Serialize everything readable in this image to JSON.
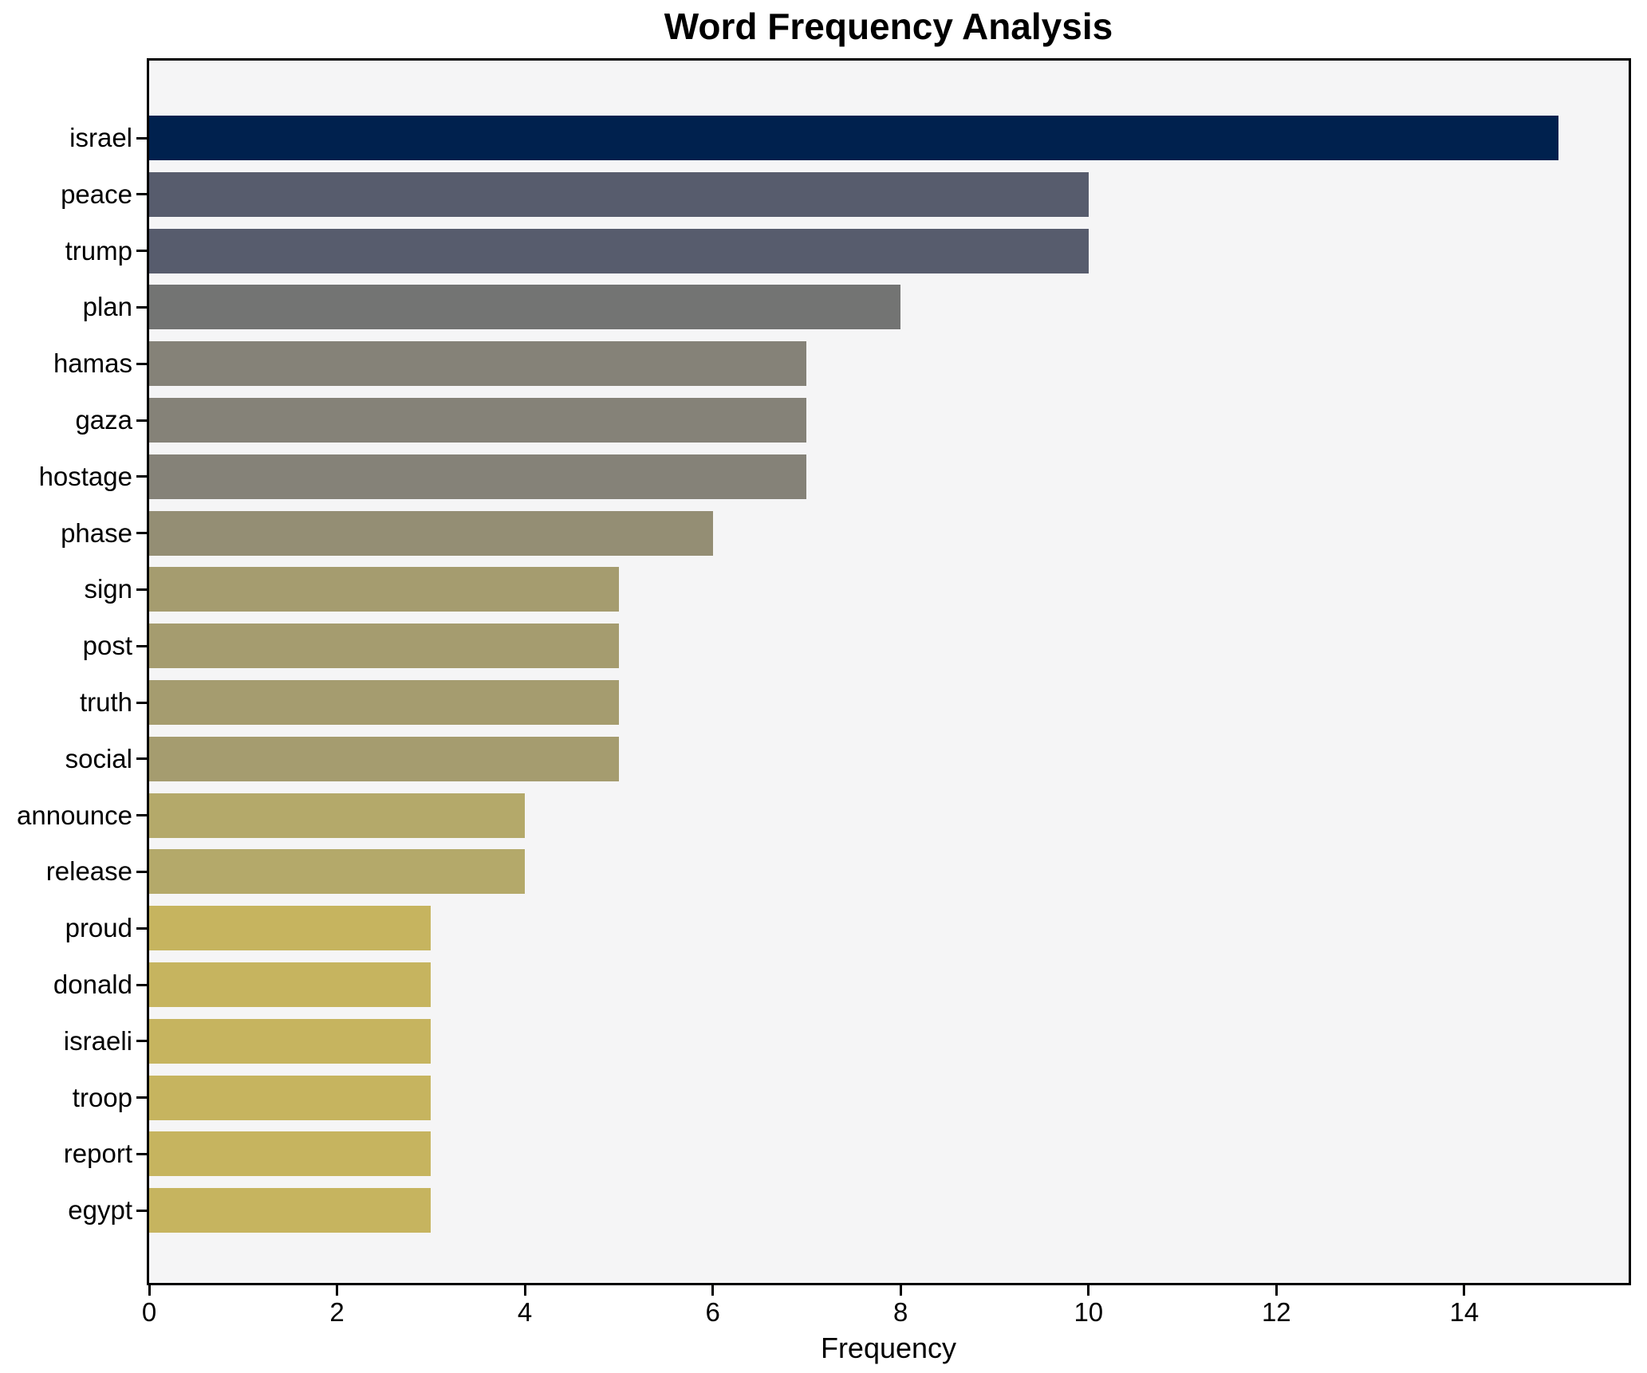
{
  "chart_data": {
    "type": "bar",
    "orientation": "horizontal",
    "title": "Word Frequency Analysis",
    "xlabel": "Frequency",
    "ylabel": "",
    "categories": [
      "israel",
      "peace",
      "trump",
      "plan",
      "hamas",
      "gaza",
      "hostage",
      "phase",
      "sign",
      "post",
      "truth",
      "social",
      "announce",
      "release",
      "proud",
      "donald",
      "israeli",
      "troop",
      "report",
      "egypt"
    ],
    "values": [
      15,
      10,
      10,
      8,
      7,
      7,
      7,
      6,
      5,
      5,
      5,
      5,
      4,
      4,
      3,
      3,
      3,
      3,
      3,
      3
    ],
    "bar_colors": [
      "#00214e",
      "#575c6d",
      "#575c6d",
      "#737473",
      "#858278",
      "#858278",
      "#858278",
      "#948e74",
      "#a59c6f",
      "#a59c6f",
      "#a59c6f",
      "#a59c6f",
      "#b4a96a",
      "#b4a96a",
      "#c6b45f",
      "#c6b45f",
      "#c6b45f",
      "#c6b45f",
      "#c6b45f",
      "#c6b45f"
    ],
    "xlim": [
      0,
      15.75
    ],
    "xticks": [
      0,
      2,
      4,
      6,
      8,
      10,
      12,
      14
    ],
    "grid": false,
    "legend_position": "none",
    "plot_background": "#f5f5f6",
    "figure_background": "#ffffff",
    "spine_color": "#000000"
  }
}
